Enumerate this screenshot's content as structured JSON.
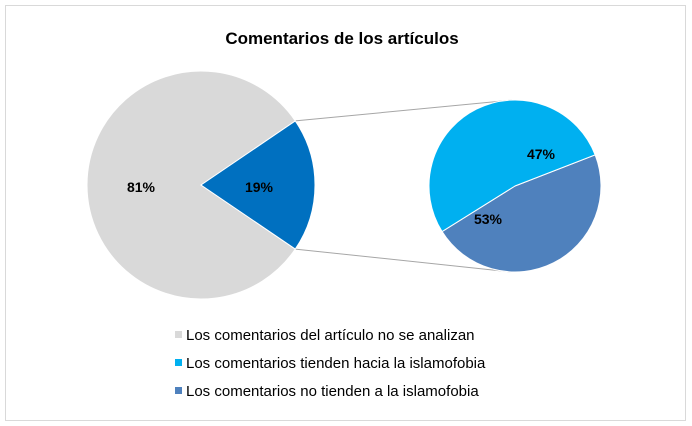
{
  "chart_data": {
    "type": "pie",
    "subtype": "pie-of-pie",
    "title": "Comentarios de los artículos",
    "main_pie": {
      "slices": [
        {
          "label": "81%",
          "value": 81,
          "color": "#d9d9d9"
        },
        {
          "label": "19%",
          "value": 19,
          "color": "#0070c0"
        }
      ]
    },
    "secondary_pie": {
      "slices": [
        {
          "label": "47%",
          "value": 47,
          "color": "#4f81bd"
        },
        {
          "label": "53%",
          "value": 53,
          "color": "#00b0f0"
        }
      ]
    },
    "connector_color": "#a6a6a6",
    "legend": {
      "position": "bottom",
      "entries": [
        {
          "label": "Los comentarios del artículo no se analizan",
          "color": "#d9d9d9"
        },
        {
          "label": "Los comentarios tienden hacia la islamofobia",
          "color": "#00b0f0"
        },
        {
          "label": "Los comentarios no tienden a la islamofobia",
          "color": "#4f81bd"
        }
      ]
    }
  }
}
